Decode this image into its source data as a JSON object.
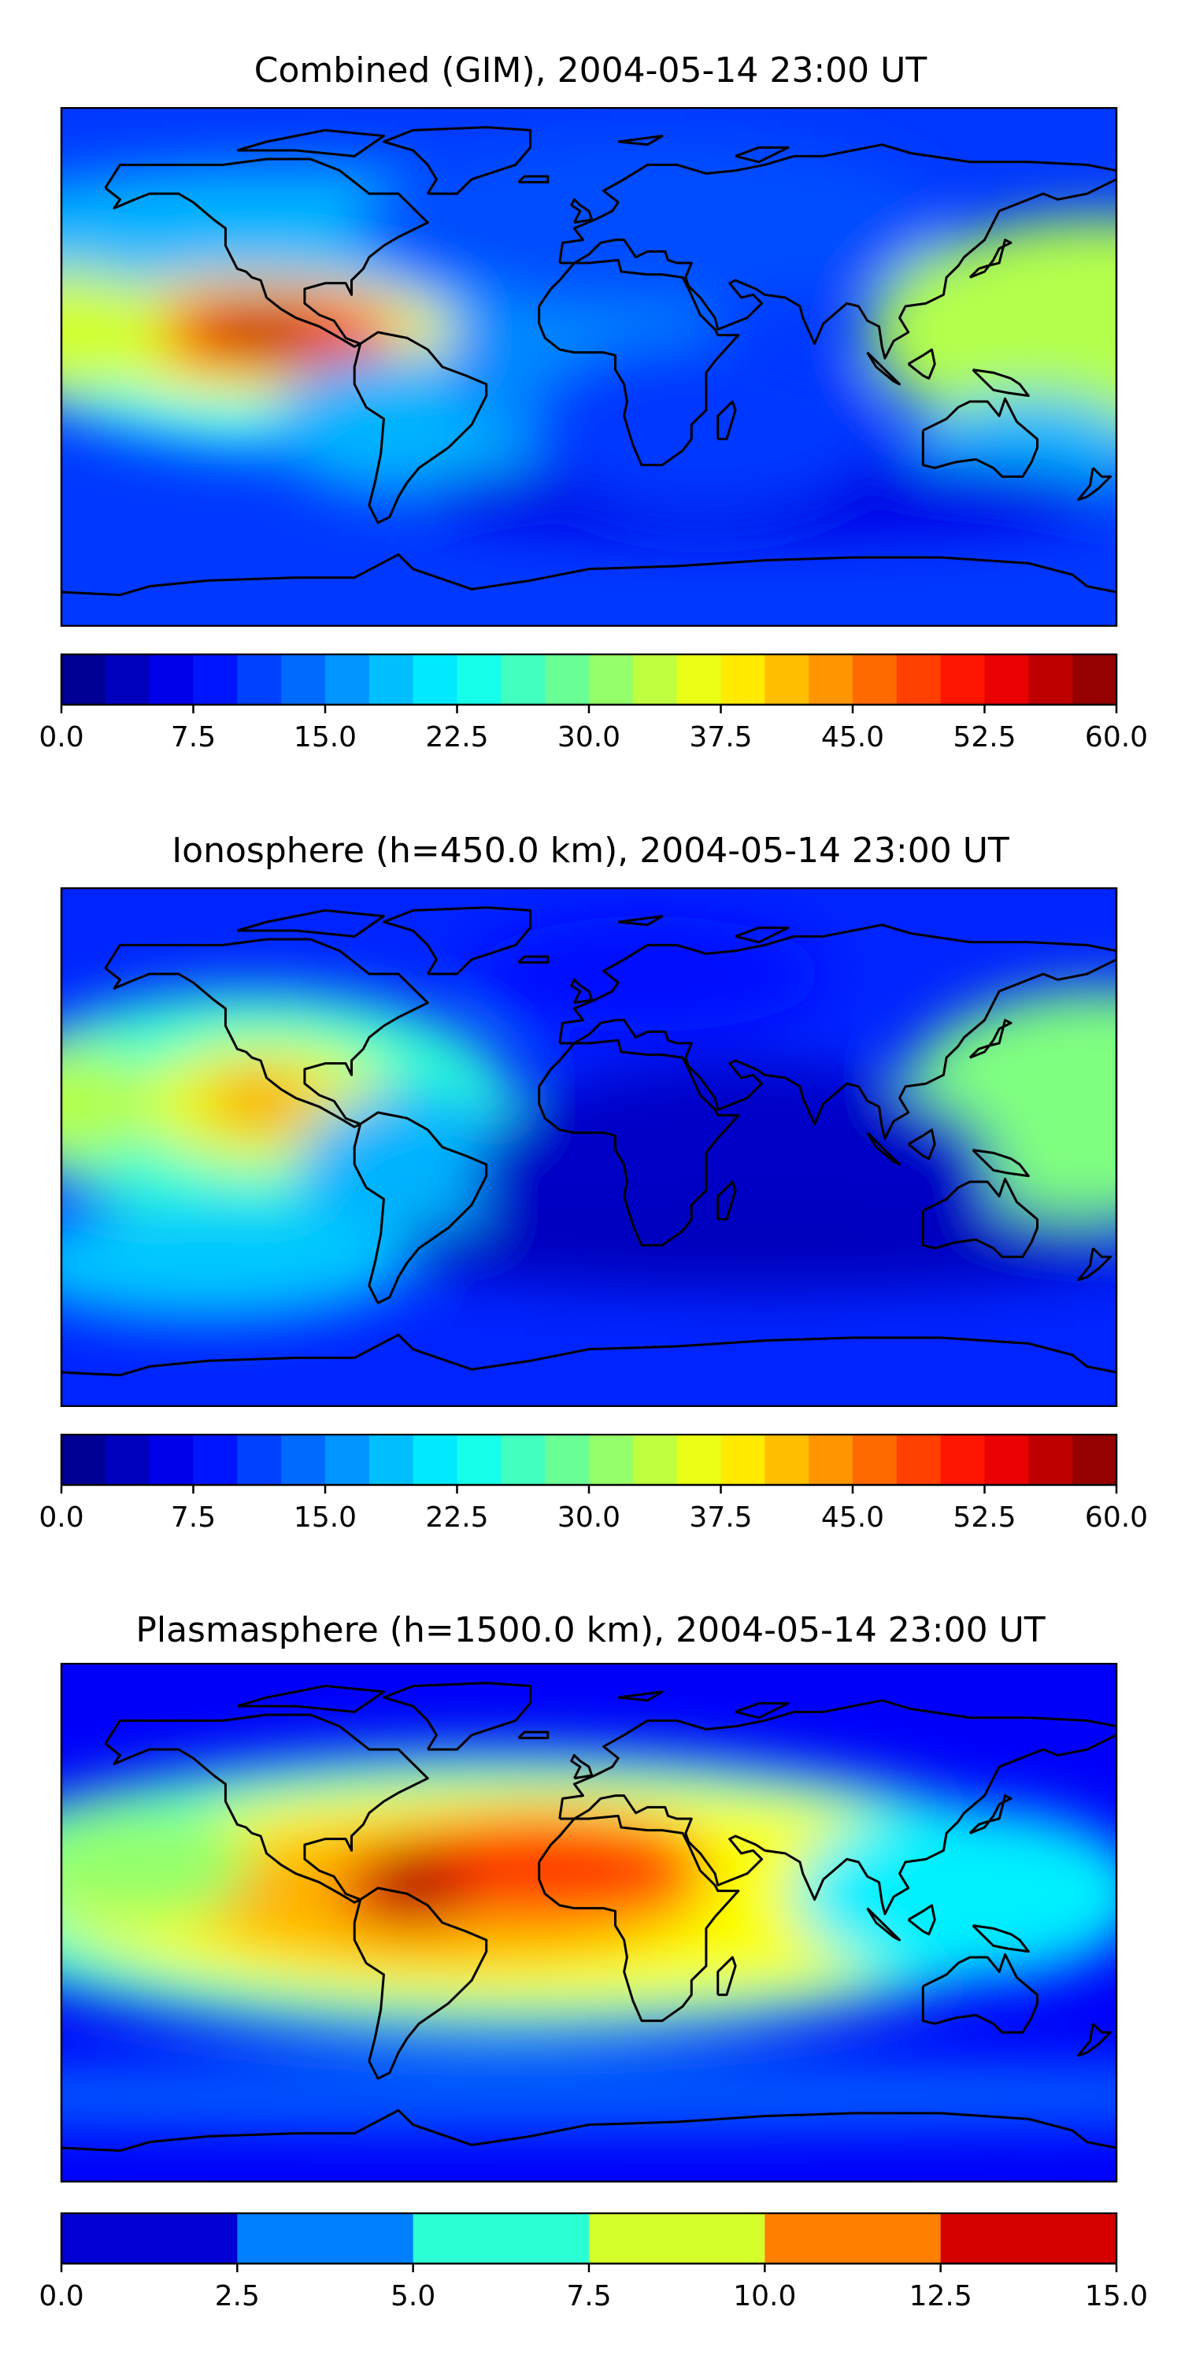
{
  "panels": [
    {
      "title": "Combined (GIM), 2004-05-14 23:00 UT",
      "colorbar": {
        "min": 0,
        "max": 60,
        "levels": 24,
        "ticks": [
          "0.0",
          "7.5",
          "15.0",
          "22.5",
          "30.0",
          "37.5",
          "45.0",
          "52.5",
          "60.0"
        ],
        "colormap": "jet"
      }
    },
    {
      "title": "Ionosphere  (h=450.0 km), 2004-05-14 23:00 UT",
      "colorbar": {
        "min": 0,
        "max": 60,
        "levels": 24,
        "ticks": [
          "0.0",
          "7.5",
          "15.0",
          "22.5",
          "30.0",
          "37.5",
          "45.0",
          "52.5",
          "60.0"
        ],
        "colormap": "jet"
      }
    },
    {
      "title": "Plasmasphere (h=1500.0 km), 2004-05-14 23:00 UT",
      "colorbar": {
        "min": 0,
        "max": 15,
        "levels": 6,
        "ticks": [
          "0.0",
          "2.5",
          "5.0",
          "7.5",
          "10.0",
          "12.5",
          "15.0"
        ],
        "colormap": "jet"
      }
    }
  ],
  "colors": {
    "jet24": [
      "#00008b",
      "#0000b4",
      "#0000e0",
      "#0010ff",
      "#0040ff",
      "#0068ff",
      "#0090ff",
      "#00b8ff",
      "#00e0fb",
      "#22ffd6",
      "#48ffb0",
      "#6eff8a",
      "#94ff64",
      "#baff3e",
      "#e0ff18",
      "#fff000",
      "#ffc800",
      "#ffa000",
      "#ff7800",
      "#ff5000",
      "#ff2800",
      "#f00000",
      "#c40000",
      "#900000"
    ],
    "jet6": [
      "#0000d8",
      "#0080ff",
      "#30ffc8",
      "#c0ff38",
      "#ff9000",
      "#d80000"
    ]
  }
}
